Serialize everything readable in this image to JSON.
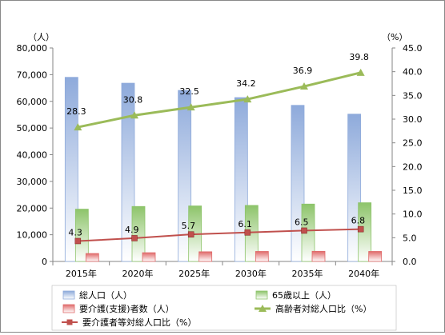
{
  "chart_data": {
    "type": "bar",
    "categories": [
      "2015年",
      "2020年",
      "2025年",
      "2030年",
      "2035年",
      "2040年"
    ],
    "bar_series": [
      {
        "name": "総人口（人）",
        "values": [
          69000,
          66800,
          64100,
          61400,
          58500,
          55200
        ],
        "color": "#8eaadb"
      },
      {
        "name": "65歳以上（人）",
        "values": [
          19600,
          20600,
          20800,
          21000,
          21500,
          22000
        ],
        "color": "#8dc46a"
      },
      {
        "name": "要介護(支援)者数（人）",
        "values": [
          2980,
          3280,
          3630,
          3750,
          3800,
          3750
        ],
        "color": "#e06a6a"
      }
    ],
    "line_series": [
      {
        "name": "高齢者対総人口比（%）",
        "values": [
          28.3,
          30.8,
          32.5,
          34.2,
          36.9,
          39.8
        ],
        "labels": [
          "28.3",
          "30.8",
          "32.5",
          "34.2",
          "36.9",
          "39.8"
        ],
        "color": "#9bbb59",
        "marker": "triangle"
      },
      {
        "name": "要介護者等対総人口比（%）",
        "values": [
          4.3,
          4.9,
          5.7,
          6.1,
          6.5,
          6.8
        ],
        "labels": [
          "4.3",
          "4.9",
          "5.7",
          "6.1",
          "6.5",
          "6.8"
        ],
        "color": "#c0504d",
        "marker": "square"
      }
    ],
    "y_left": {
      "unit": "（人）",
      "min": 0,
      "max": 80000,
      "ticks": [
        "0",
        "10,000",
        "20,000",
        "30,000",
        "40,000",
        "50,000",
        "60,000",
        "70,000",
        "80,000"
      ]
    },
    "y_right": {
      "unit": "（%）",
      "min": 0,
      "max": 45,
      "ticks": [
        "0.0",
        "5.0",
        "10.0",
        "15.0",
        "20.0",
        "25.0",
        "30.0",
        "35.0",
        "40.0",
        "45.0"
      ]
    },
    "legend": {
      "placement": "bottom"
    },
    "grid": false
  }
}
